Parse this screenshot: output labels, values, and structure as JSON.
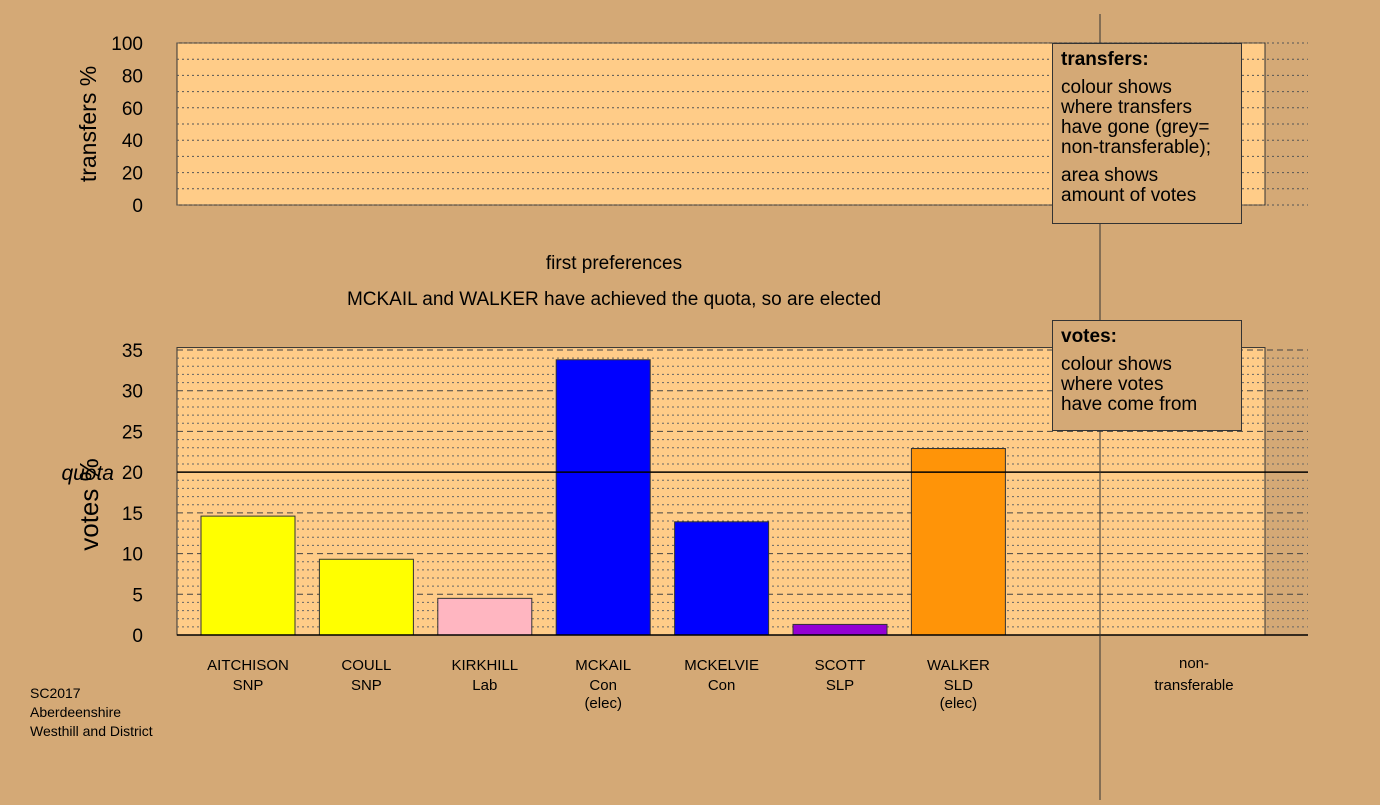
{
  "chart_data": [
    {
      "type": "bar",
      "panel": "transfers",
      "ylabel": "transfers %",
      "ylim": [
        0,
        100
      ],
      "yticks": [
        0,
        20,
        40,
        60,
        80,
        100
      ],
      "values": []
    },
    {
      "type": "bar",
      "panel": "votes",
      "title": "first preferences",
      "subtitle": "MCKAIL and WALKER have achieved the quota, so are elected",
      "ylabel": "votes %",
      "ylim": [
        0,
        35
      ],
      "yticks": [
        0,
        5,
        10,
        15,
        20,
        25,
        30,
        35
      ],
      "quota": 20,
      "quota_label": "quota",
      "grid": true,
      "categories": [
        {
          "name": "AITCHISON",
          "party": "SNP",
          "note": "",
          "value": 14.6,
          "color": "#ffff00"
        },
        {
          "name": "COULL",
          "party": "SNP",
          "note": "",
          "value": 9.3,
          "color": "#ffff00"
        },
        {
          "name": "KIRKHILL",
          "party": "Lab",
          "note": "",
          "value": 4.5,
          "color": "#ffb6c1"
        },
        {
          "name": "MCKAIL",
          "party": "Con",
          "note": "(elec)",
          "value": 33.8,
          "color": "#0000ff"
        },
        {
          "name": "MCKELVIE",
          "party": "Con",
          "note": "",
          "value": 13.9,
          "color": "#0000ff"
        },
        {
          "name": "SCOTT",
          "party": "SLP",
          "note": "",
          "value": 1.3,
          "color": "#9400d3"
        },
        {
          "name": "WALKER",
          "party": "SLD",
          "note": "(elec)",
          "value": 22.9,
          "color": "#ff9408"
        }
      ],
      "nontransferable": {
        "line1": "non-",
        "line2": "transferable",
        "value": 0
      }
    }
  ],
  "legend_transfers": {
    "title": "transfers:",
    "lines1": [
      "colour shows",
      "where transfers",
      "have gone (grey=",
      "non-transferable);"
    ],
    "lines2": [
      "area shows",
      "amount of votes"
    ]
  },
  "legend_votes": {
    "title": "votes:",
    "lines1": [
      "colour shows",
      "where votes",
      "have come from"
    ]
  },
  "footer": {
    "line1": "SC2017",
    "line2": "Aberdeenshire",
    "line3": "Westhill and District"
  },
  "colors": {
    "background": "#d4a976",
    "plot_fill": "#ffcc88"
  }
}
